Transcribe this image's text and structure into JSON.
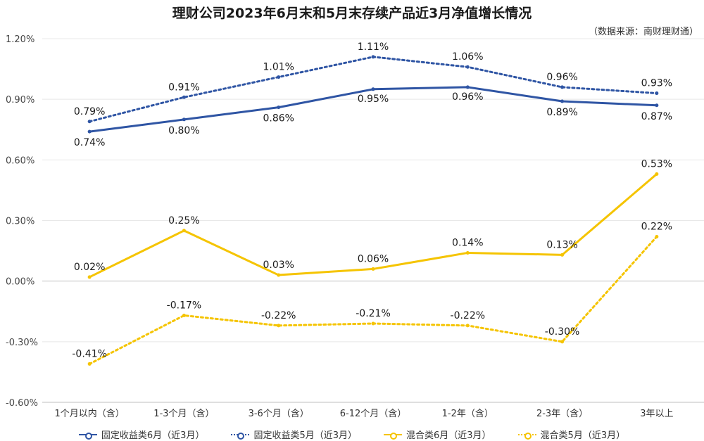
{
  "title": "理财公司2023年6月末和5月末存续产品近3月净值增长情况",
  "source": "（数据来源：南财理财通）",
  "colors": {
    "blue": "#2f55a4",
    "yellow": "#f5c400",
    "grid": "#e8e8e8",
    "axis": "#bfbfbf"
  },
  "chart_data": {
    "type": "line",
    "categories": [
      "1个月以内（含）",
      "1-3个月（含）",
      "3-6个月（含）",
      "6-12个月（含）",
      "1-2年（含）",
      "2-3年（含）",
      "3年以上"
    ],
    "ylim": [
      -0.6,
      1.2
    ],
    "yticks": [
      -0.6,
      -0.3,
      0.0,
      0.3,
      0.6,
      0.9,
      1.2
    ],
    "ytick_labels": [
      "-0.60%",
      "-0.30%",
      "0.00%",
      "0.30%",
      "0.60%",
      "0.90%",
      "1.20%"
    ],
    "series": [
      {
        "name": "固定收益类6月（近3月）",
        "color": "#2f55a4",
        "style": "solid",
        "values": [
          0.74,
          0.8,
          0.86,
          0.95,
          0.96,
          0.89,
          0.87
        ],
        "labels": [
          "0.74%",
          "0.80%",
          "0.86%",
          "0.95%",
          "0.96%",
          "0.89%",
          "0.87%"
        ]
      },
      {
        "name": "固定收益类5月（近3月）",
        "color": "#2f55a4",
        "style": "dotted",
        "values": [
          0.79,
          0.91,
          1.01,
          1.11,
          1.06,
          0.96,
          0.93
        ],
        "labels": [
          "0.79%",
          "0.91%",
          "1.01%",
          "1.11%",
          "1.06%",
          "0.96%",
          "0.93%"
        ]
      },
      {
        "name": "混合类6月（近3月）",
        "color": "#f5c400",
        "style": "solid",
        "values": [
          0.02,
          0.25,
          0.03,
          0.06,
          0.14,
          0.13,
          0.53
        ],
        "labels": [
          "0.02%",
          "0.25%",
          "0.03%",
          "0.06%",
          "0.14%",
          "0.13%",
          "0.53%"
        ]
      },
      {
        "name": "混合类5月（近3月）",
        "color": "#f5c400",
        "style": "dotted",
        "values": [
          -0.41,
          -0.17,
          -0.22,
          -0.21,
          -0.22,
          -0.3,
          0.22
        ],
        "labels": [
          "-0.41%",
          "-0.17%",
          "-0.22%",
          "-0.21%",
          "-0.22%",
          "-0.30%",
          "0.22%"
        ]
      }
    ],
    "legend_position": "bottom"
  }
}
